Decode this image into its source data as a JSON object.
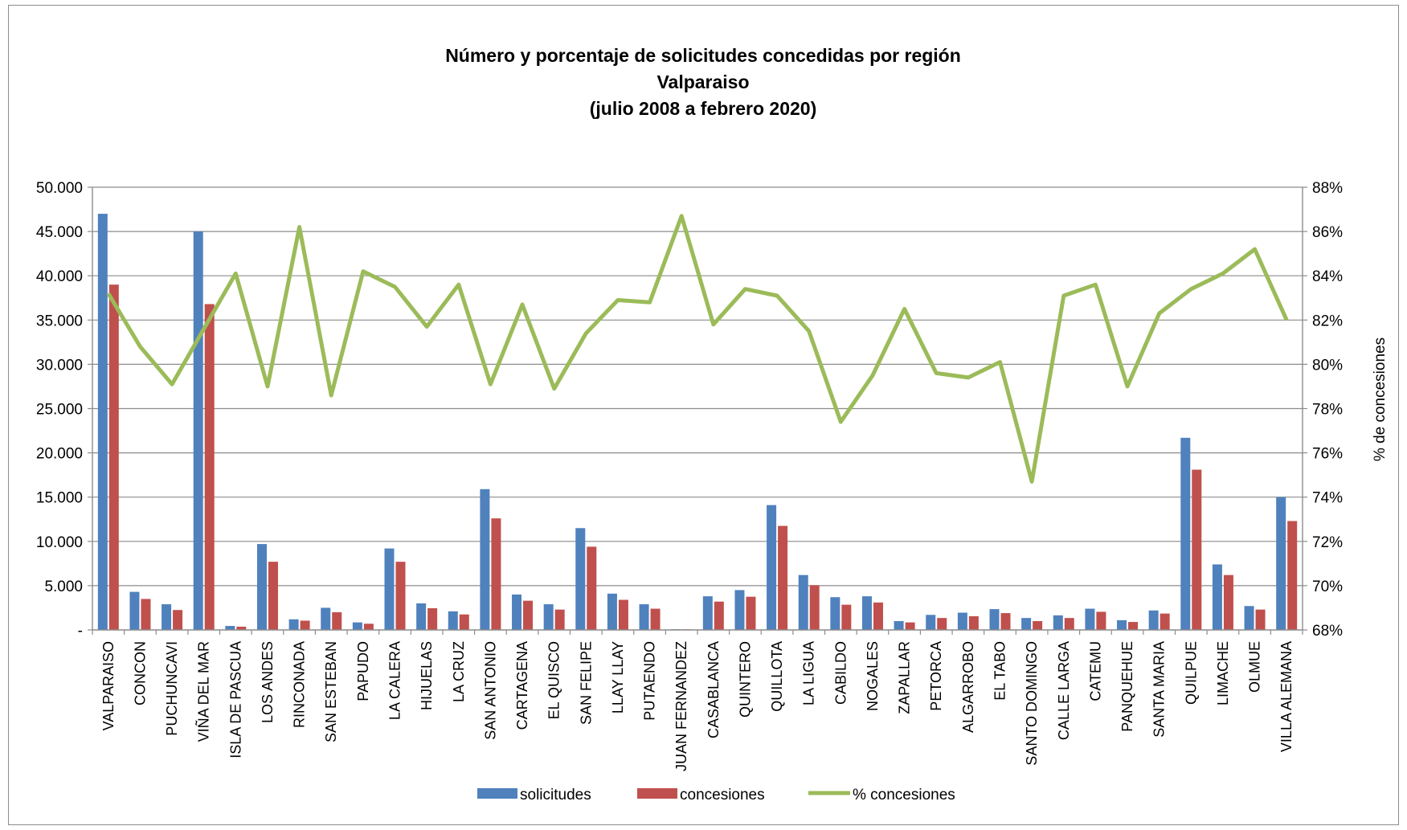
{
  "chart_data": {
    "type": "bar",
    "title_lines": [
      "Número y porcentaje de solicitudes concedidas por región",
      "Valparaiso",
      "(julio 2008 a febrero 2020)"
    ],
    "categories": [
      "VALPARAISO",
      "CONCON",
      "PUCHUNCAVI",
      "VIÑA DEL MAR",
      "ISLA DE PASCUA",
      "LOS ANDES",
      "RINCONADA",
      "SAN ESTEBAN",
      "PAPUDO",
      "LA CALERA",
      "HIJUELAS",
      "LA CRUZ",
      "SAN ANTONIO",
      "CARTAGENA",
      "EL QUISCO",
      "SAN FELIPE",
      "LLAY LLAY",
      "PUTAENDO",
      "JUAN FERNANDEZ",
      "CASABLANCA",
      "QUINTERO",
      "QUILLOTA",
      "LA LIGUA",
      "CABILDO",
      "NOGALES",
      "ZAPALLAR",
      "PETORCA",
      "ALGARROBO",
      "EL TABO",
      "SANTO DOMINGO",
      "CALLE LARGA",
      "CATEMU",
      "PANQUEHUE",
      "SANTA MARIA",
      "QUILPUE",
      "LIMACHE",
      "OLMUE",
      "VILLA ALEMANA"
    ],
    "series": [
      {
        "name": "solicitudes",
        "axis": "left",
        "kind": "bar",
        "color": "#4f81bd",
        "values": [
          47000,
          4300,
          2900,
          45000,
          450,
          9700,
          1200,
          2500,
          850,
          9200,
          3000,
          2100,
          15900,
          4000,
          2900,
          11500,
          4100,
          2900,
          80,
          3800,
          4500,
          14100,
          6200,
          3700,
          3800,
          1000,
          1700,
          1950,
          2350,
          1350,
          1650,
          2400,
          1100,
          2200,
          21700,
          7400,
          2700,
          15000
        ]
      },
      {
        "name": "concesiones",
        "axis": "left",
        "kind": "bar",
        "color": "#c0504d",
        "values": [
          39000,
          3500,
          2250,
          36800,
          370,
          7700,
          1050,
          2000,
          700,
          7700,
          2450,
          1750,
          12600,
          3300,
          2300,
          9400,
          3400,
          2400,
          70,
          3200,
          3750,
          11750,
          5050,
          2850,
          3100,
          850,
          1350,
          1550,
          1900,
          1000,
          1350,
          2050,
          900,
          1850,
          18100,
          6200,
          2300,
          12300
        ]
      },
      {
        "name": "% concesiones",
        "axis": "right",
        "kind": "line",
        "color": "#9bbb59",
        "values": [
          83.2,
          80.8,
          79.1,
          81.6,
          84.1,
          79.0,
          86.2,
          78.6,
          84.2,
          83.5,
          81.7,
          83.6,
          79.1,
          82.7,
          78.9,
          81.4,
          82.9,
          82.8,
          86.7,
          81.8,
          83.4,
          83.1,
          81.5,
          77.4,
          79.5,
          82.5,
          79.6,
          79.4,
          80.1,
          74.7,
          83.1,
          83.6,
          79.0,
          82.3,
          83.4,
          84.1,
          85.2,
          82.0
        ]
      }
    ],
    "y_left": {
      "min": 0,
      "max": 50000,
      "step": 5000,
      "tick_labels": [
        "-",
        "5.000",
        "10.000",
        "15.000",
        "20.000",
        "25.000",
        "30.000",
        "35.000",
        "40.000",
        "45.000",
        "50.000"
      ]
    },
    "y_right": {
      "min": 68,
      "max": 88,
      "step": 2,
      "label": "% de concesiones",
      "tick_labels": [
        "68%",
        "70%",
        "72%",
        "74%",
        "76%",
        "78%",
        "80%",
        "82%",
        "84%",
        "86%",
        "88%"
      ]
    },
    "grid": true,
    "legend": [
      "solicitudes",
      "concesiones",
      "% concesiones"
    ],
    "legend_placement": "bottom"
  }
}
